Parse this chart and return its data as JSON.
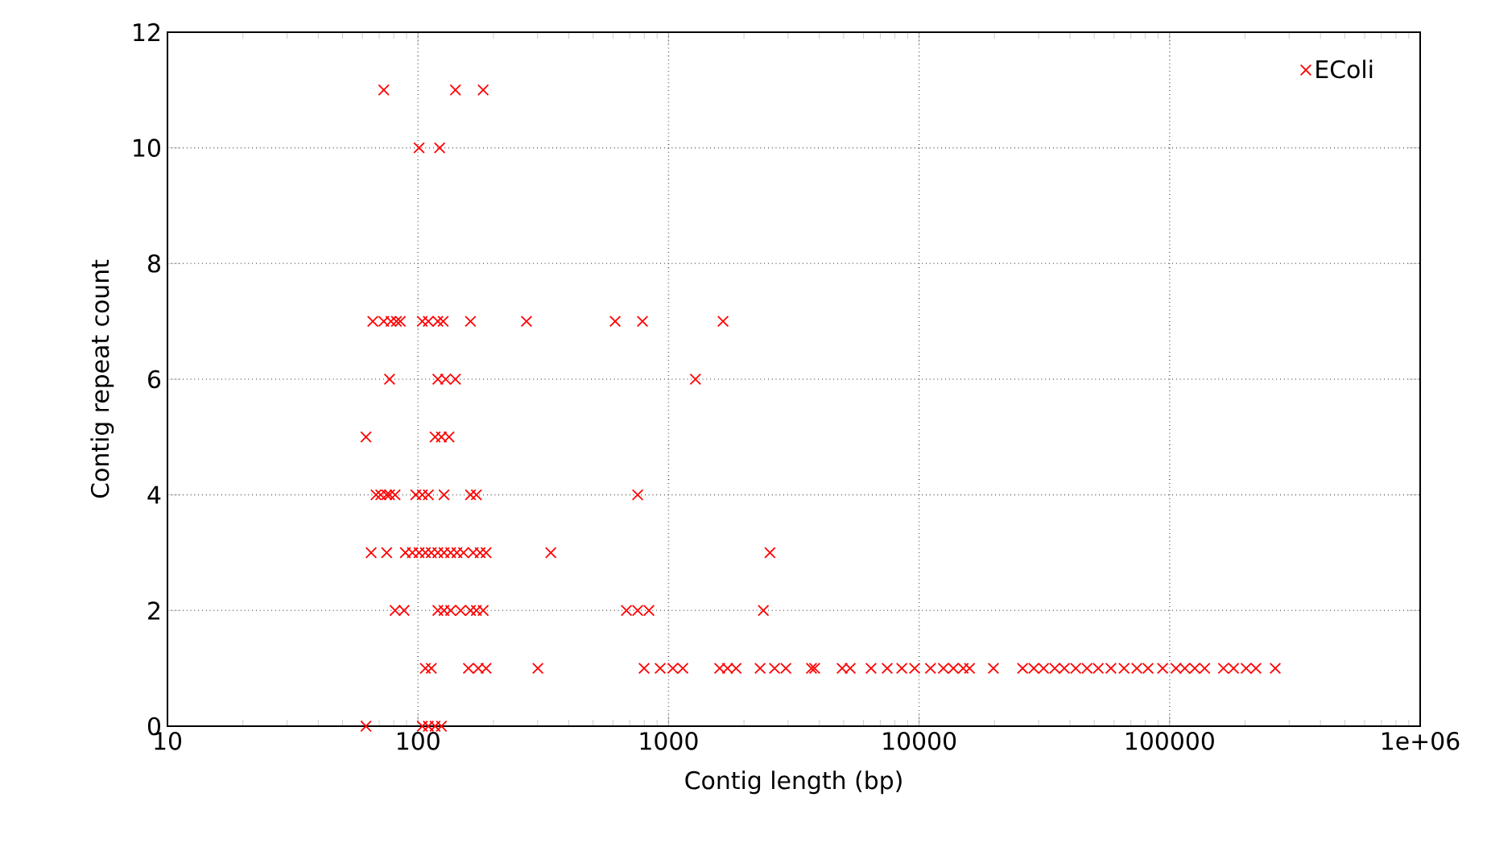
{
  "chart_data": {
    "type": "scatter",
    "xlabel": "Contig length (bp)",
    "ylabel": "Contig repeat count",
    "log": "x",
    "grid": true,
    "legend": "top right",
    "marker": "cross",
    "xlim": [
      10,
      1000000
    ],
    "ylim": [
      0,
      12
    ],
    "xticks": [
      10,
      100,
      1000,
      10000,
      100000,
      {
        "value": 1000000,
        "label": "1e+06"
      }
    ],
    "yticks": [
      0,
      2,
      4,
      6,
      8,
      10,
      12
    ],
    "series": [
      {
        "name": "EColi",
        "color": "#ff0000",
        "x": [
          73,
          141,
          182,
          101,
          122,
          66,
          73,
          78,
          82,
          85,
          104,
          110,
          120,
          126,
          162,
          271,
          612,
          787,
          1650,
          77,
          120,
          129,
          141,
          1280,
          62,
          117,
          124,
          133,
          68,
          71,
          75,
          77,
          81,
          98,
          104,
          110,
          127,
          162,
          171,
          753,
          65,
          75,
          89,
          95,
          101,
          107,
          113,
          120,
          127,
          135,
          143,
          152,
          166,
          177,
          187,
          339,
          2540,
          81,
          88,
          120,
          127,
          135,
          148,
          162,
          171,
          182,
          679,
          753,
          835,
          2390,
          107,
          113,
          159,
          174,
          187,
          301,
          799,
          926,
          1040,
          1140,
          1600,
          1720,
          1860,
          2320,
          2650,
          2940,
          3720,
          3830,
          4930,
          5310,
          6430,
          7460,
          8530,
          9600,
          11100,
          12500,
          13700,
          15000,
          15900,
          19800,
          25900,
          28700,
          31400,
          34800,
          38000,
          42200,
          46800,
          51900,
          58300,
          65800,
          74000,
          82000,
          93800,
          106000,
          115000,
          126000,
          138000,
          164000,
          180000,
          202000,
          221000,
          264000,
          62,
          104,
          110,
          117,
          124
        ],
        "values": [
          11,
          11,
          11,
          10,
          10,
          7,
          7,
          7,
          7,
          7,
          7,
          7,
          7,
          7,
          7,
          7,
          7,
          7,
          7,
          6,
          6,
          6,
          6,
          6,
          5,
          5,
          5,
          5,
          4,
          4,
          4,
          4,
          4,
          4,
          4,
          4,
          4,
          4,
          4,
          4,
          3,
          3,
          3,
          3,
          3,
          3,
          3,
          3,
          3,
          3,
          3,
          3,
          3,
          3,
          3,
          3,
          3,
          2,
          2,
          2,
          2,
          2,
          2,
          2,
          2,
          2,
          2,
          2,
          2,
          2,
          1,
          1,
          1,
          1,
          1,
          1,
          1,
          1,
          1,
          1,
          1,
          1,
          1,
          1,
          1,
          1,
          1,
          1,
          1,
          1,
          1,
          1,
          1,
          1,
          1,
          1,
          1,
          1,
          1,
          1,
          1,
          1,
          1,
          1,
          1,
          1,
          1,
          1,
          1,
          1,
          1,
          1,
          1,
          1,
          1,
          1,
          1,
          1,
          1,
          1,
          1,
          1,
          0,
          0,
          0,
          0,
          0
        ]
      }
    ]
  }
}
